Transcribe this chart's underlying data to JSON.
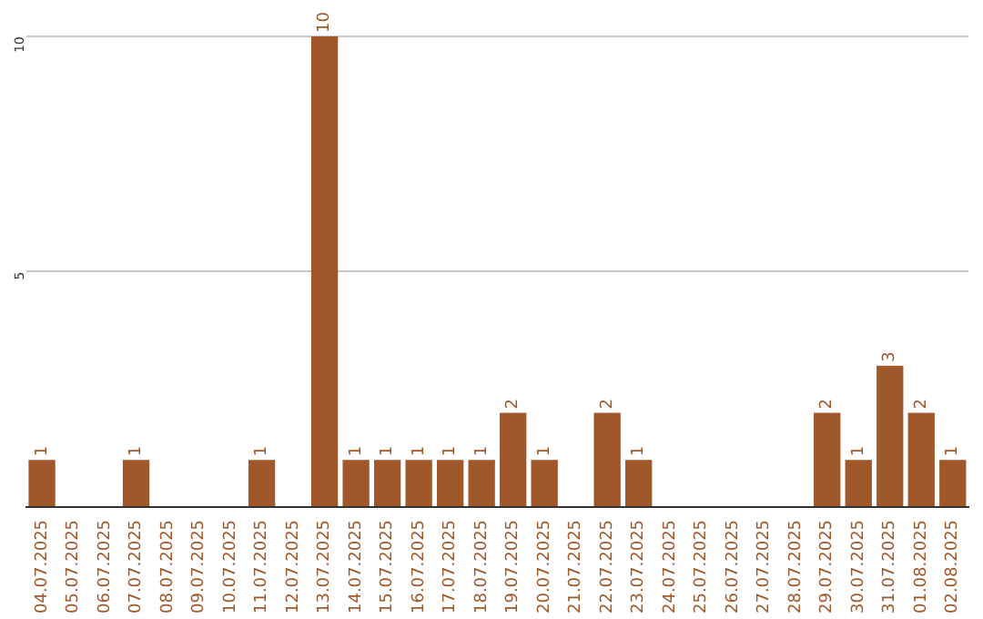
{
  "chart_data": {
    "type": "bar",
    "categories": [
      "04.07.2025",
      "05.07.2025",
      "06.07.2025",
      "07.07.2025",
      "08.07.2025",
      "09.07.2025",
      "10.07.2025",
      "11.07.2025",
      "12.07.2025",
      "13.07.2025",
      "14.07.2025",
      "15.07.2025",
      "16.07.2025",
      "17.07.2025",
      "18.07.2025",
      "19.07.2025",
      "20.07.2025",
      "21.07.2025",
      "22.07.2025",
      "23.07.2025",
      "24.07.2025",
      "25.07.2025",
      "26.07.2025",
      "27.07.2025",
      "28.07.2025",
      "29.07.2025",
      "30.07.2025",
      "31.07.2025",
      "01.08.2025",
      "02.08.2025"
    ],
    "values": [
      1,
      0,
      0,
      1,
      0,
      0,
      0,
      1,
      0,
      10,
      1,
      1,
      1,
      1,
      1,
      2,
      1,
      0,
      2,
      1,
      0,
      0,
      0,
      0,
      0,
      2,
      1,
      3,
      2,
      1
    ],
    "value_labels": [
      "1",
      null,
      null,
      "1",
      null,
      null,
      null,
      "1",
      null,
      "10",
      "1",
      "1",
      "1",
      "1",
      "1",
      "2",
      "1",
      null,
      "2",
      "1",
      null,
      null,
      null,
      null,
      null,
      "2",
      "1",
      "3",
      "2",
      "1"
    ],
    "color": "#a0582a",
    "ylim": [
      0,
      10
    ],
    "yticks": [
      {
        "value": 0,
        "label": null
      },
      5,
      10
    ],
    "grid": "y",
    "legend": false
  }
}
